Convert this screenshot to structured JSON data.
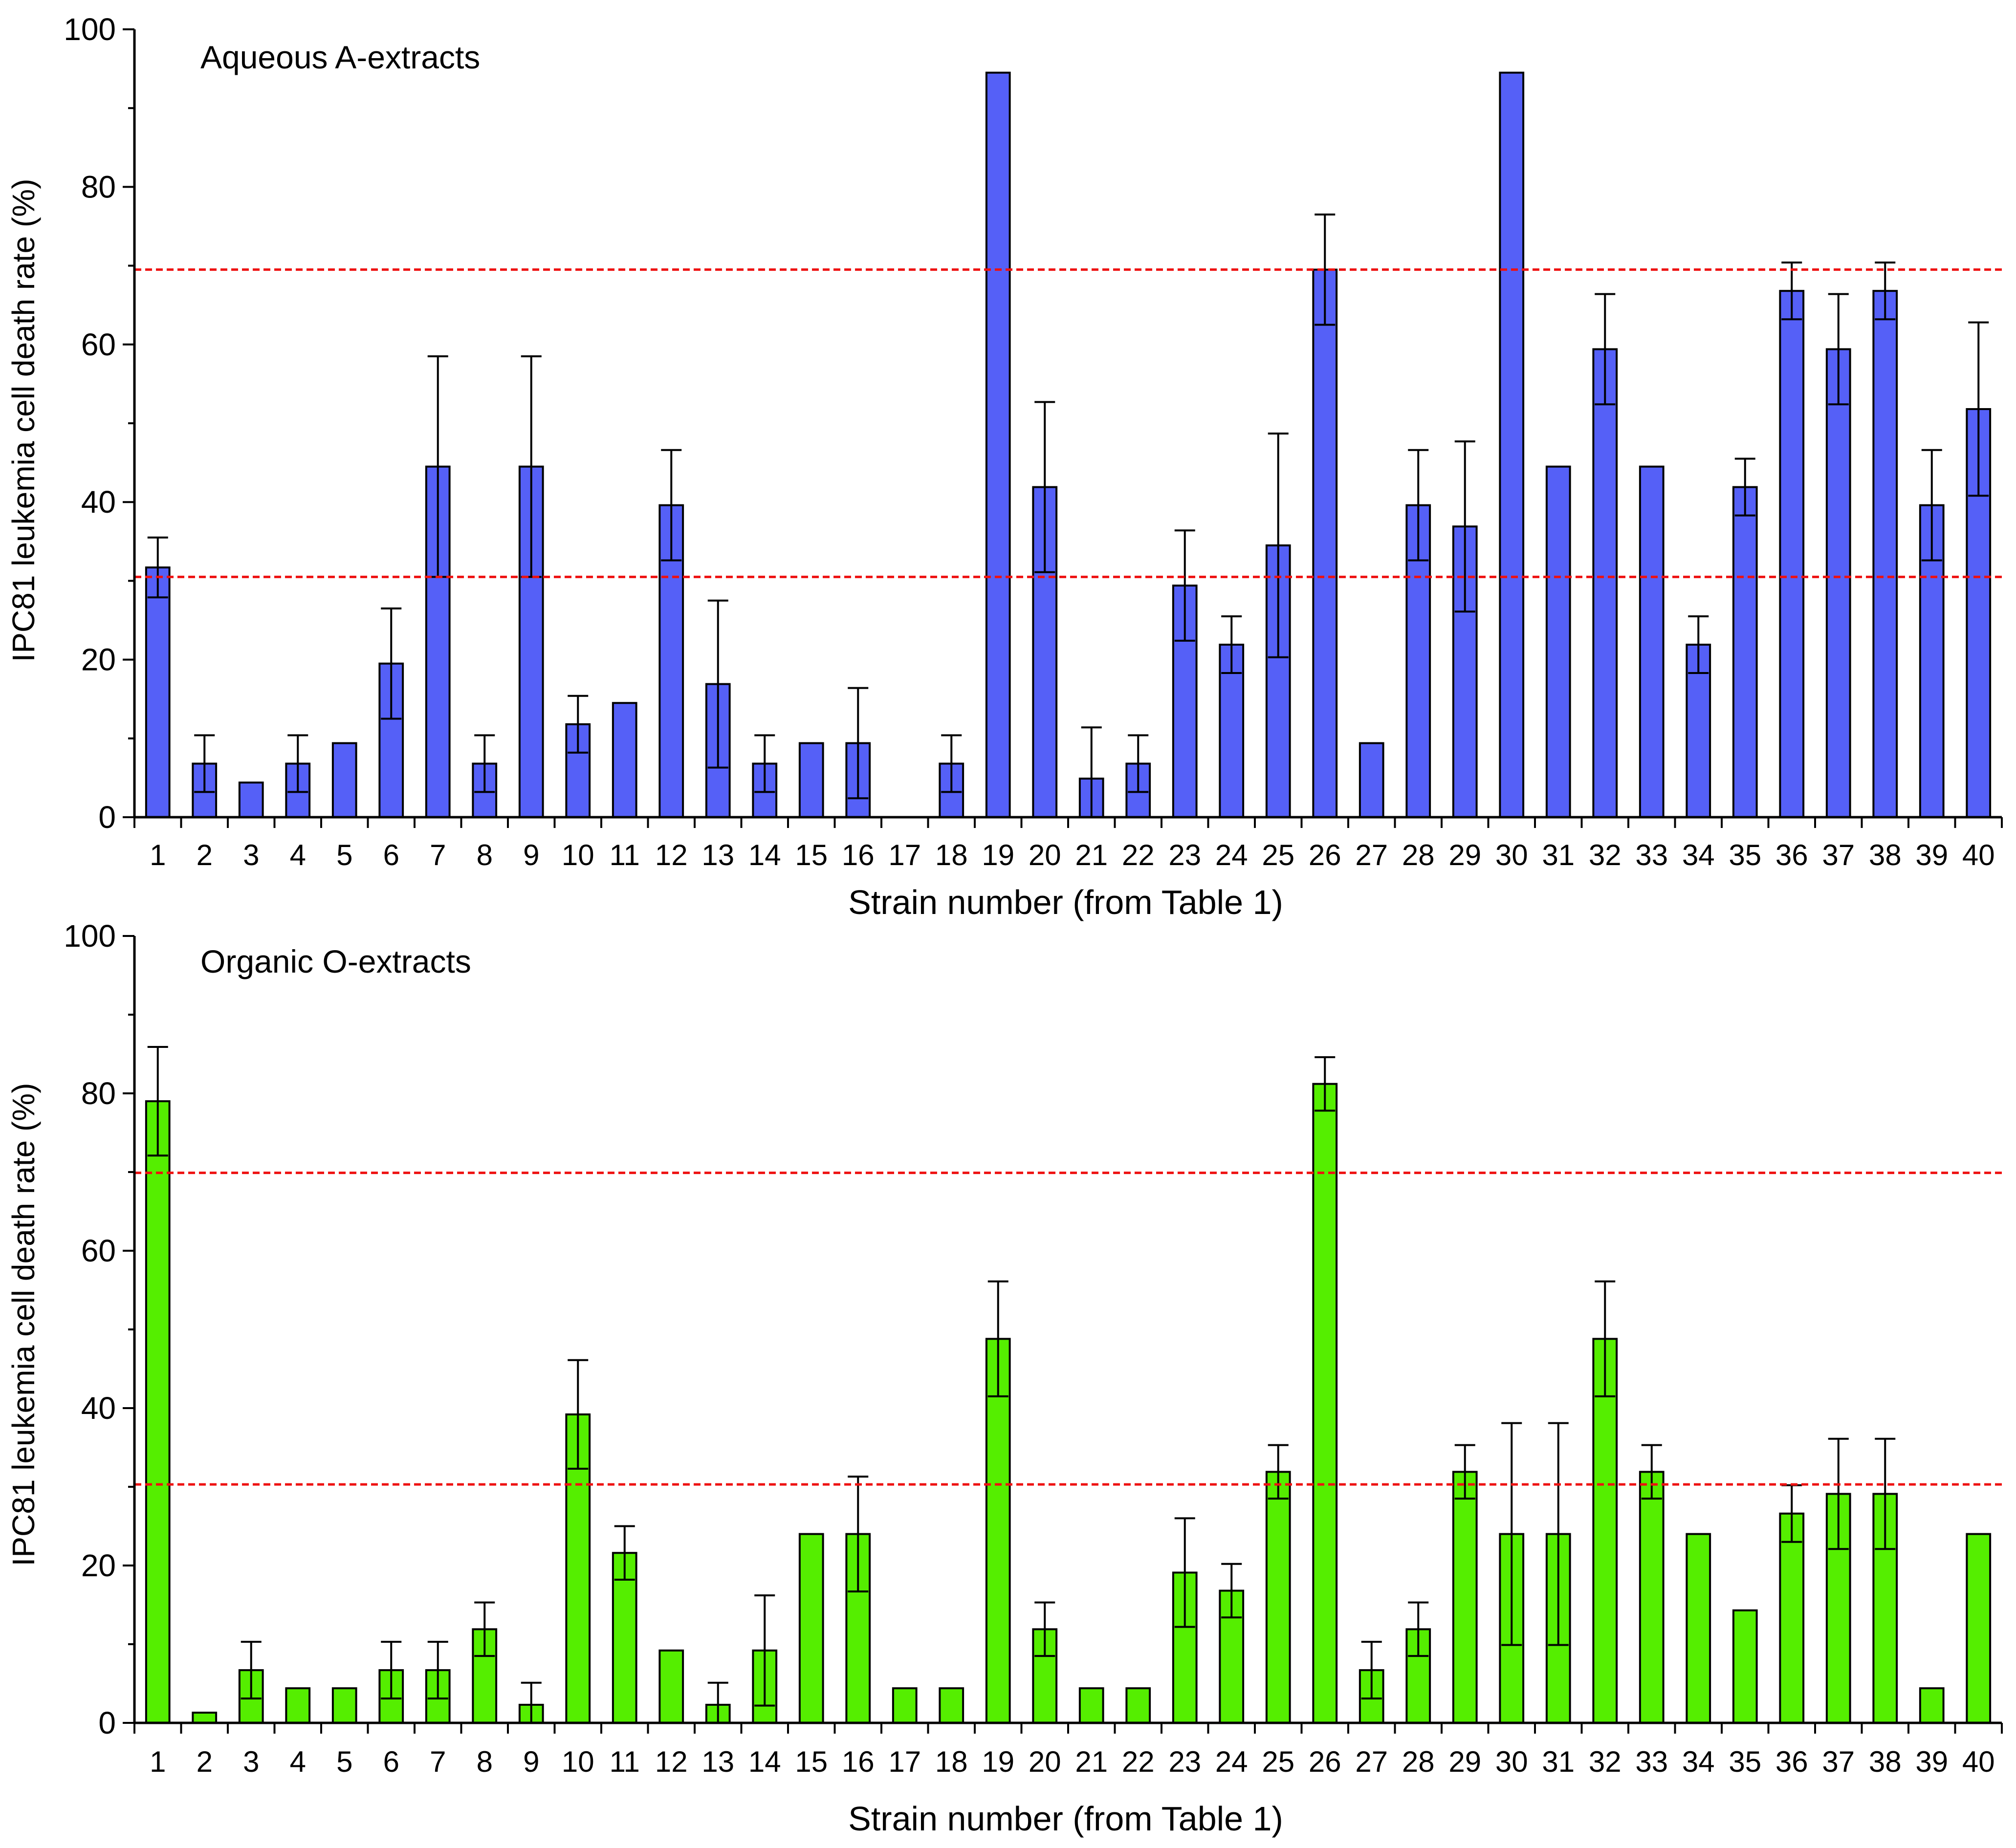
{
  "colors": {
    "top_bar": "#5560f7",
    "bottom_bar": "#55ee00",
    "threshold_line": "#ee1111",
    "axis": "#000000"
  },
  "chart_data": [
    {
      "type": "bar",
      "title": "Aqueous A-extracts",
      "xlabel": "Strain number (from Table 1)",
      "ylabel": "IPC81 leukemia cell death rate (%)",
      "ylim": [
        0,
        100
      ],
      "yticks": [
        0,
        20,
        40,
        60,
        80,
        100
      ],
      "categories": [
        "1",
        "2",
        "3",
        "4",
        "5",
        "6",
        "7",
        "8",
        "9",
        "10",
        "11",
        "12",
        "13",
        "14",
        "15",
        "16",
        "17",
        "18",
        "19",
        "20",
        "21",
        "22",
        "23",
        "24",
        "25",
        "26",
        "27",
        "28",
        "29",
        "30",
        "31",
        "32",
        "33",
        "34",
        "35",
        "36",
        "37",
        "38",
        "39",
        "40"
      ],
      "values": [
        31.7,
        6.8,
        4.4,
        6.8,
        9.4,
        19.5,
        44.5,
        6.8,
        44.5,
        11.8,
        14.5,
        39.6,
        16.9,
        6.8,
        9.4,
        9.4,
        0,
        6.8,
        94.5,
        41.9,
        4.9,
        6.8,
        29.4,
        21.9,
        34.5,
        69.5,
        9.4,
        39.6,
        36.9,
        94.5,
        44.5,
        59.4,
        44.5,
        21.9,
        41.9,
        66.8,
        59.4,
        66.8,
        39.6,
        51.8
      ],
      "errors": [
        3.8,
        3.6,
        0,
        3.6,
        0,
        7.0,
        14.0,
        3.6,
        14.0,
        3.6,
        0,
        7.0,
        10.6,
        3.6,
        0,
        7.0,
        0,
        3.6,
        0,
        10.8,
        6.5,
        3.6,
        7.0,
        3.6,
        14.2,
        7.0,
        0,
        7.0,
        10.8,
        0,
        0,
        7.0,
        0,
        3.6,
        3.6,
        3.6,
        7.0,
        3.6,
        7.0,
        11.0
      ],
      "thresholds": [
        30.5,
        69.5
      ]
    },
    {
      "type": "bar",
      "title": "Organic O-extracts",
      "xlabel": "Strain number (from Table 1)",
      "ylabel": "IPC81 leukemia cell death rate (%)",
      "ylim": [
        0,
        100
      ],
      "yticks": [
        0,
        20,
        40,
        60,
        80,
        100
      ],
      "categories": [
        "1",
        "2",
        "3",
        "4",
        "5",
        "6",
        "7",
        "8",
        "9",
        "10",
        "11",
        "12",
        "13",
        "14",
        "15",
        "16",
        "17",
        "18",
        "19",
        "20",
        "21",
        "22",
        "23",
        "24",
        "25",
        "26",
        "27",
        "28",
        "29",
        "30",
        "31",
        "32",
        "33",
        "34",
        "35",
        "36",
        "37",
        "38",
        "39",
        "40"
      ],
      "values": [
        79.0,
        1.3,
        6.7,
        4.4,
        4.4,
        6.7,
        6.7,
        11.9,
        2.3,
        39.2,
        21.6,
        9.2,
        2.3,
        9.2,
        24.0,
        24.0,
        4.4,
        4.4,
        48.8,
        11.9,
        4.4,
        4.4,
        19.1,
        16.8,
        31.9,
        81.2,
        6.7,
        11.9,
        31.9,
        24.0,
        24.0,
        48.8,
        31.9,
        24.0,
        14.3,
        26.6,
        29.1,
        29.1,
        4.4,
        24.0
      ],
      "errors": [
        6.9,
        0,
        3.6,
        0,
        0,
        3.6,
        3.6,
        3.4,
        2.8,
        6.9,
        3.4,
        0,
        2.8,
        7.0,
        0,
        7.3,
        0,
        0,
        7.3,
        3.4,
        0,
        0,
        6.9,
        3.4,
        3.4,
        3.4,
        3.6,
        3.4,
        3.4,
        14.1,
        14.1,
        7.3,
        3.4,
        0,
        0,
        3.6,
        7.0,
        7.0,
        0,
        0
      ],
      "thresholds": [
        30.3,
        69.9
      ]
    }
  ]
}
